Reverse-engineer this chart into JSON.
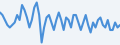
{
  "values": [
    2.0,
    1.5,
    0.5,
    -0.5,
    -1.0,
    -0.5,
    0.0,
    1.5,
    0.5,
    3.5,
    2.5,
    1.0,
    -1.0,
    0.5,
    3.0,
    4.0,
    1.5,
    -4.0,
    -1.0,
    1.0,
    1.5,
    0.0,
    -1.5,
    0.5,
    2.0,
    0.5,
    -1.5,
    1.0,
    0.5,
    -1.0,
    1.5,
    1.5,
    0.0,
    -1.5,
    0.0,
    1.5,
    -0.5,
    -2.0,
    0.0,
    -1.0,
    0.5,
    1.0,
    -0.5,
    -1.0,
    0.5,
    -1.5,
    -1.5,
    0.0,
    -1.0,
    -0.5
  ],
  "line_color": "#4a90d9",
  "background_color": "#f0f4f8",
  "linewidth": 1.5
}
